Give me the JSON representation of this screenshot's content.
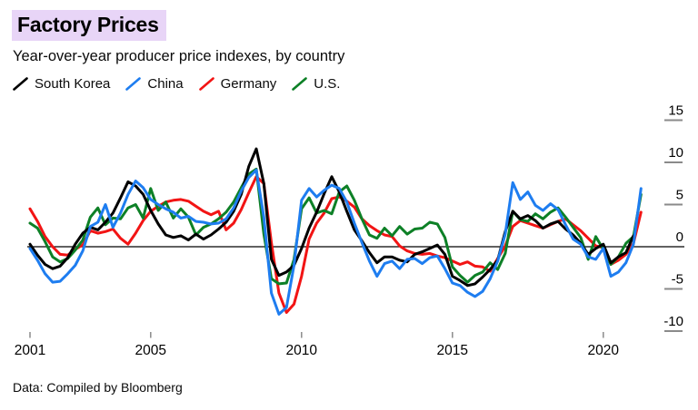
{
  "header": {
    "title": "Factory Prices",
    "subtitle": "Year-over-year producer price indexes, by country",
    "title_highlight_color": "#e8d5f7"
  },
  "footer": {
    "source": "Data: Compiled by Bloomberg"
  },
  "style": {
    "axis_line_color": "#000000",
    "tick_color": "#8a8a8a",
    "label_color": "#000000"
  },
  "chart_data": {
    "type": "line",
    "title": "Factory Prices",
    "subtitle": "Year-over-year producer price indexes, by country",
    "x_start": 2001.0,
    "x_step": 0.25,
    "x_ticks": [
      2001,
      2005,
      2010,
      2015,
      2020
    ],
    "y_ticks": [
      15,
      10,
      5,
      0,
      -5,
      -10
    ],
    "ylim": [
      -11.5,
      16.5
    ],
    "xlim": [
      2001,
      2021.7
    ],
    "legend_position": "top-left",
    "y_axis_side": "right",
    "grid": false,
    "series": [
      {
        "name": "South Korea",
        "color": "#000000",
        "values": [
          0.3,
          -1.0,
          -2.1,
          -2.6,
          -2.3,
          -1.3,
          0.3,
          1.6,
          2.3,
          2.0,
          2.9,
          4.0,
          5.8,
          7.7,
          7.2,
          6.2,
          4.3,
          2.7,
          1.4,
          1.1,
          1.3,
          0.8,
          1.5,
          0.9,
          1.4,
          2.1,
          2.9,
          4.2,
          6.2,
          9.5,
          11.6,
          7.5,
          -1.5,
          -3.4,
          -3.0,
          -2.2,
          -0.2,
          2.2,
          4.1,
          6.3,
          8.3,
          6.5,
          4.2,
          2.0,
          0.7,
          -0.7,
          -1.9,
          -1.2,
          -1.2,
          -1.6,
          -1.8,
          -0.9,
          -0.6,
          -0.2,
          0.2,
          -0.9,
          -3.5,
          -4.0,
          -4.6,
          -4.4,
          -3.6,
          -2.7,
          -1.6,
          1.8,
          4.2,
          3.3,
          3.7,
          3.1,
          2.2,
          2.7,
          3.0,
          2.1,
          1.4,
          0.4,
          -0.9,
          -0.2,
          0.3,
          -1.9,
          -1.2,
          -0.7,
          1.3,
          null
        ]
      },
      {
        "name": "China",
        "color": "#1e7df0",
        "values": [
          -0.2,
          -1.6,
          -3.2,
          -4.2,
          -4.1,
          -3.2,
          -2.2,
          -0.5,
          2.4,
          2.9,
          5.0,
          2.3,
          4.0,
          6.2,
          7.8,
          7.0,
          5.6,
          5.0,
          4.5,
          4.1,
          3.4,
          3.6,
          3.0,
          2.9,
          2.7,
          2.8,
          3.3,
          4.6,
          6.6,
          8.2,
          9.1,
          3.5,
          -5.5,
          -8.0,
          -7.2,
          -2.2,
          5.5,
          6.9,
          5.9,
          6.7,
          7.3,
          6.9,
          5.3,
          2.8,
          0.5,
          -1.7,
          -3.5,
          -2.0,
          -1.7,
          -2.6,
          -1.5,
          -1.4,
          -2.0,
          -1.3,
          -1.1,
          -2.6,
          -4.3,
          -4.6,
          -5.4,
          -5.9,
          -5.3,
          -3.8,
          -1.7,
          1.5,
          7.6,
          5.6,
          6.5,
          4.9,
          4.3,
          5.1,
          4.4,
          2.6,
          0.9,
          0.3,
          -1.2,
          -1.5,
          -0.2,
          -3.5,
          -3.0,
          -1.9,
          0.3,
          6.9
        ]
      },
      {
        "name": "Germany",
        "color": "#f21414",
        "values": [
          4.5,
          3.0,
          1.2,
          0.0,
          -0.9,
          -1.0,
          -0.3,
          0.2,
          1.9,
          1.6,
          1.8,
          2.1,
          1.0,
          0.3,
          1.6,
          3.1,
          4.2,
          4.8,
          5.3,
          5.5,
          5.6,
          5.4,
          4.8,
          4.2,
          3.8,
          4.2,
          2.0,
          2.8,
          4.4,
          6.4,
          8.3,
          7.5,
          0.5,
          -5.5,
          -7.8,
          -6.8,
          -3.5,
          0.9,
          2.8,
          4.0,
          5.7,
          5.9,
          5.4,
          4.7,
          3.3,
          2.5,
          1.9,
          1.4,
          1.2,
          0.1,
          -0.5,
          -0.8,
          -0.9,
          -0.8,
          -1.1,
          -1.3,
          -1.7,
          -2.1,
          -1.8,
          -2.3,
          -2.4,
          -2.9,
          -1.4,
          0.1,
          2.4,
          3.1,
          2.8,
          2.5,
          2.2,
          2.6,
          3.0,
          3.3,
          2.6,
          1.9,
          1.0,
          0.1,
          -0.1,
          -2.1,
          -1.6,
          -0.9,
          0.4,
          4.1
        ]
      },
      {
        "name": "U.S.",
        "color": "#0d8026",
        "values": [
          2.8,
          2.2,
          0.6,
          -1.2,
          -1.8,
          -1.4,
          -0.4,
          0.8,
          3.5,
          4.6,
          2.6,
          3.4,
          3.3,
          4.6,
          5.0,
          3.4,
          6.9,
          4.3,
          5.3,
          3.4,
          4.5,
          3.5,
          1.4,
          2.3,
          2.7,
          3.3,
          4.1,
          5.3,
          7.0,
          8.6,
          9.2,
          1.5,
          -3.8,
          -4.4,
          -4.3,
          -1.5,
          4.5,
          5.8,
          4.0,
          4.3,
          3.9,
          6.5,
          7.2,
          5.5,
          3.3,
          1.4,
          1.0,
          2.2,
          1.3,
          2.4,
          1.5,
          2.1,
          2.2,
          2.9,
          2.7,
          1.1,
          -2.4,
          -3.4,
          -4.2,
          -3.4,
          -3.0,
          -1.9,
          -2.7,
          -0.8,
          4.2,
          3.2,
          3.0,
          3.9,
          3.3,
          4.1,
          4.6,
          3.5,
          2.3,
          1.1,
          -1.5,
          1.2,
          -0.3,
          -2.1,
          -1.2,
          0.4,
          1.2,
          6.2
        ]
      }
    ]
  }
}
